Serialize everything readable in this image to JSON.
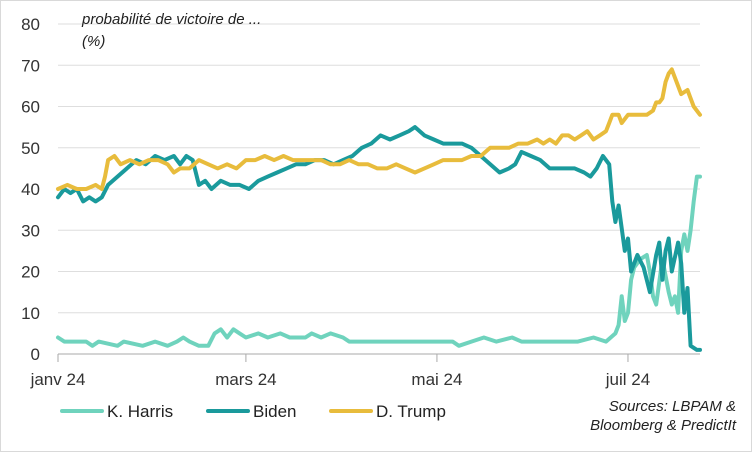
{
  "chart_data": {
    "type": "line",
    "ylabel_line1": "probabilité de victoire de ...",
    "ylabel_line2": "(%)",
    "ylim": [
      0,
      80
    ],
    "yticks": [
      0,
      10,
      20,
      30,
      40,
      50,
      60,
      70,
      80
    ],
    "x_range": [
      "2024-01-01",
      "2024-07-24"
    ],
    "xticks": [
      {
        "date": "2024-01-01",
        "label": "janv 24"
      },
      {
        "date": "2024-03-01",
        "label": "mars 24"
      },
      {
        "date": "2024-05-01",
        "label": "mai 24"
      },
      {
        "date": "2024-07-01",
        "label": "juil 24"
      }
    ],
    "grid": "horizontal",
    "legend": "bottom",
    "source": [
      "Sources: LBPAM &",
      "Bloomberg & PredictIt"
    ],
    "series": [
      {
        "name": "K. Harris",
        "color": "#6fd3bd",
        "points": [
          [
            "2024-01-01",
            4
          ],
          [
            "2024-01-03",
            3
          ],
          [
            "2024-01-10",
            3
          ],
          [
            "2024-01-12",
            2
          ],
          [
            "2024-01-14",
            3
          ],
          [
            "2024-01-20",
            2
          ],
          [
            "2024-01-22",
            3
          ],
          [
            "2024-01-28",
            2
          ],
          [
            "2024-02-01",
            3
          ],
          [
            "2024-02-05",
            2
          ],
          [
            "2024-02-08",
            3
          ],
          [
            "2024-02-10",
            4
          ],
          [
            "2024-02-12",
            3
          ],
          [
            "2024-02-15",
            2
          ],
          [
            "2024-02-18",
            2
          ],
          [
            "2024-02-20",
            5
          ],
          [
            "2024-02-22",
            6
          ],
          [
            "2024-02-24",
            4
          ],
          [
            "2024-02-26",
            6
          ],
          [
            "2024-02-28",
            5
          ],
          [
            "2024-03-01",
            4
          ],
          [
            "2024-03-05",
            5
          ],
          [
            "2024-03-08",
            4
          ],
          [
            "2024-03-12",
            5
          ],
          [
            "2024-03-15",
            4
          ],
          [
            "2024-03-20",
            4
          ],
          [
            "2024-03-22",
            5
          ],
          [
            "2024-03-25",
            4
          ],
          [
            "2024-03-28",
            5
          ],
          [
            "2024-04-01",
            4
          ],
          [
            "2024-04-03",
            3
          ],
          [
            "2024-04-10",
            3
          ],
          [
            "2024-04-20",
            3
          ],
          [
            "2024-05-01",
            3
          ],
          [
            "2024-05-06",
            3
          ],
          [
            "2024-05-08",
            2
          ],
          [
            "2024-05-12",
            3
          ],
          [
            "2024-05-16",
            4
          ],
          [
            "2024-05-20",
            3
          ],
          [
            "2024-05-25",
            4
          ],
          [
            "2024-05-28",
            3
          ],
          [
            "2024-06-05",
            3
          ],
          [
            "2024-06-15",
            3
          ],
          [
            "2024-06-20",
            4
          ],
          [
            "2024-06-24",
            3
          ],
          [
            "2024-06-27",
            5
          ],
          [
            "2024-06-28",
            7
          ],
          [
            "2024-06-29",
            14
          ],
          [
            "2024-06-30",
            8
          ],
          [
            "2024-07-01",
            10
          ],
          [
            "2024-07-02",
            18
          ],
          [
            "2024-07-03",
            21
          ],
          [
            "2024-07-05",
            23
          ],
          [
            "2024-07-07",
            24
          ],
          [
            "2024-07-08",
            20
          ],
          [
            "2024-07-09",
            14
          ],
          [
            "2024-07-10",
            12
          ],
          [
            "2024-07-12",
            23
          ],
          [
            "2024-07-14",
            15
          ],
          [
            "2024-07-15",
            12
          ],
          [
            "2024-07-16",
            14
          ],
          [
            "2024-07-17",
            10
          ],
          [
            "2024-07-18",
            25
          ],
          [
            "2024-07-19",
            29
          ],
          [
            "2024-07-20",
            25
          ],
          [
            "2024-07-21",
            30
          ],
          [
            "2024-07-22",
            37
          ],
          [
            "2024-07-23",
            43
          ],
          [
            "2024-07-24",
            43
          ]
        ]
      },
      {
        "name": "Biden",
        "color": "#1a9a9c",
        "points": [
          [
            "2024-01-01",
            38
          ],
          [
            "2024-01-03",
            40
          ],
          [
            "2024-01-05",
            39
          ],
          [
            "2024-01-07",
            40
          ],
          [
            "2024-01-09",
            37
          ],
          [
            "2024-01-11",
            38
          ],
          [
            "2024-01-13",
            37
          ],
          [
            "2024-01-15",
            38
          ],
          [
            "2024-01-17",
            41
          ],
          [
            "2024-01-20",
            43
          ],
          [
            "2024-01-23",
            45
          ],
          [
            "2024-01-26",
            47
          ],
          [
            "2024-01-29",
            46
          ],
          [
            "2024-02-01",
            48
          ],
          [
            "2024-02-04",
            47
          ],
          [
            "2024-02-07",
            48
          ],
          [
            "2024-02-09",
            46
          ],
          [
            "2024-02-11",
            48
          ],
          [
            "2024-02-13",
            47
          ],
          [
            "2024-02-14",
            44
          ],
          [
            "2024-02-15",
            41
          ],
          [
            "2024-02-17",
            42
          ],
          [
            "2024-02-19",
            40
          ],
          [
            "2024-02-22",
            42
          ],
          [
            "2024-02-25",
            41
          ],
          [
            "2024-02-28",
            41
          ],
          [
            "2024-03-02",
            40
          ],
          [
            "2024-03-05",
            42
          ],
          [
            "2024-03-08",
            43
          ],
          [
            "2024-03-11",
            44
          ],
          [
            "2024-03-14",
            45
          ],
          [
            "2024-03-17",
            46
          ],
          [
            "2024-03-20",
            46
          ],
          [
            "2024-03-23",
            47
          ],
          [
            "2024-03-26",
            47
          ],
          [
            "2024-03-29",
            46
          ],
          [
            "2024-04-01",
            47
          ],
          [
            "2024-04-04",
            48
          ],
          [
            "2024-04-07",
            50
          ],
          [
            "2024-04-10",
            51
          ],
          [
            "2024-04-13",
            53
          ],
          [
            "2024-04-16",
            52
          ],
          [
            "2024-04-19",
            53
          ],
          [
            "2024-04-22",
            54
          ],
          [
            "2024-04-24",
            55
          ],
          [
            "2024-04-27",
            53
          ],
          [
            "2024-04-30",
            52
          ],
          [
            "2024-05-03",
            51
          ],
          [
            "2024-05-06",
            51
          ],
          [
            "2024-05-09",
            51
          ],
          [
            "2024-05-12",
            50
          ],
          [
            "2024-05-15",
            48
          ],
          [
            "2024-05-18",
            46
          ],
          [
            "2024-05-21",
            44
          ],
          [
            "2024-05-24",
            45
          ],
          [
            "2024-05-26",
            46
          ],
          [
            "2024-05-28",
            49
          ],
          [
            "2024-05-31",
            48
          ],
          [
            "2024-06-03",
            47
          ],
          [
            "2024-06-06",
            45
          ],
          [
            "2024-06-10",
            45
          ],
          [
            "2024-06-14",
            45
          ],
          [
            "2024-06-17",
            44
          ],
          [
            "2024-06-19",
            43
          ],
          [
            "2024-06-21",
            45
          ],
          [
            "2024-06-23",
            48
          ],
          [
            "2024-06-25",
            46
          ],
          [
            "2024-06-26",
            37
          ],
          [
            "2024-06-27",
            32
          ],
          [
            "2024-06-28",
            36
          ],
          [
            "2024-06-30",
            25
          ],
          [
            "2024-07-01",
            28
          ],
          [
            "2024-07-02",
            20
          ],
          [
            "2024-07-04",
            24
          ],
          [
            "2024-07-06",
            21
          ],
          [
            "2024-07-08",
            15
          ],
          [
            "2024-07-10",
            24
          ],
          [
            "2024-07-11",
            27
          ],
          [
            "2024-07-12",
            18
          ],
          [
            "2024-07-13",
            25
          ],
          [
            "2024-07-14",
            28
          ],
          [
            "2024-07-15",
            20
          ],
          [
            "2024-07-17",
            27
          ],
          [
            "2024-07-18",
            22
          ],
          [
            "2024-07-19",
            10
          ],
          [
            "2024-07-20",
            16
          ],
          [
            "2024-07-21",
            2
          ],
          [
            "2024-07-23",
            1
          ],
          [
            "2024-07-24",
            1
          ]
        ]
      },
      {
        "name": "D. Trump",
        "color": "#e8bc3c",
        "points": [
          [
            "2024-01-01",
            40
          ],
          [
            "2024-01-04",
            41
          ],
          [
            "2024-01-07",
            40
          ],
          [
            "2024-01-10",
            40
          ],
          [
            "2024-01-13",
            41
          ],
          [
            "2024-01-15",
            40
          ],
          [
            "2024-01-16",
            43
          ],
          [
            "2024-01-17",
            47
          ],
          [
            "2024-01-19",
            48
          ],
          [
            "2024-01-21",
            46
          ],
          [
            "2024-01-24",
            47
          ],
          [
            "2024-01-27",
            46
          ],
          [
            "2024-01-30",
            47
          ],
          [
            "2024-02-02",
            47
          ],
          [
            "2024-02-05",
            46
          ],
          [
            "2024-02-07",
            44
          ],
          [
            "2024-02-09",
            45
          ],
          [
            "2024-02-12",
            45
          ],
          [
            "2024-02-15",
            47
          ],
          [
            "2024-02-18",
            46
          ],
          [
            "2024-02-21",
            45
          ],
          [
            "2024-02-24",
            46
          ],
          [
            "2024-02-27",
            45
          ],
          [
            "2024-03-01",
            47
          ],
          [
            "2024-03-04",
            47
          ],
          [
            "2024-03-07",
            48
          ],
          [
            "2024-03-10",
            47
          ],
          [
            "2024-03-13",
            48
          ],
          [
            "2024-03-16",
            47
          ],
          [
            "2024-03-19",
            47
          ],
          [
            "2024-03-22",
            47
          ],
          [
            "2024-03-25",
            47
          ],
          [
            "2024-03-28",
            46
          ],
          [
            "2024-03-31",
            46
          ],
          [
            "2024-04-03",
            47
          ],
          [
            "2024-04-06",
            46
          ],
          [
            "2024-04-09",
            46
          ],
          [
            "2024-04-12",
            45
          ],
          [
            "2024-04-15",
            45
          ],
          [
            "2024-04-18",
            46
          ],
          [
            "2024-04-21",
            45
          ],
          [
            "2024-04-24",
            44
          ],
          [
            "2024-04-27",
            45
          ],
          [
            "2024-04-30",
            46
          ],
          [
            "2024-05-03",
            47
          ],
          [
            "2024-05-06",
            47
          ],
          [
            "2024-05-09",
            47
          ],
          [
            "2024-05-12",
            48
          ],
          [
            "2024-05-15",
            48
          ],
          [
            "2024-05-18",
            50
          ],
          [
            "2024-05-21",
            50
          ],
          [
            "2024-05-24",
            50
          ],
          [
            "2024-05-27",
            51
          ],
          [
            "2024-05-30",
            51
          ],
          [
            "2024-06-02",
            52
          ],
          [
            "2024-06-04",
            51
          ],
          [
            "2024-06-06",
            52
          ],
          [
            "2024-06-08",
            51
          ],
          [
            "2024-06-10",
            53
          ],
          [
            "2024-06-12",
            53
          ],
          [
            "2024-06-14",
            52
          ],
          [
            "2024-06-16",
            53
          ],
          [
            "2024-06-18",
            54
          ],
          [
            "2024-06-20",
            52
          ],
          [
            "2024-06-22",
            53
          ],
          [
            "2024-06-24",
            54
          ],
          [
            "2024-06-25",
            56
          ],
          [
            "2024-06-26",
            58
          ],
          [
            "2024-06-28",
            58
          ],
          [
            "2024-06-29",
            56
          ],
          [
            "2024-07-01",
            58
          ],
          [
            "2024-07-04",
            58
          ],
          [
            "2024-07-07",
            58
          ],
          [
            "2024-07-09",
            59
          ],
          [
            "2024-07-10",
            61
          ],
          [
            "2024-07-11",
            61
          ],
          [
            "2024-07-12",
            62
          ],
          [
            "2024-07-13",
            66
          ],
          [
            "2024-07-14",
            68
          ],
          [
            "2024-07-15",
            69
          ],
          [
            "2024-07-16",
            67
          ],
          [
            "2024-07-18",
            63
          ],
          [
            "2024-07-20",
            64
          ],
          [
            "2024-07-21",
            62
          ],
          [
            "2024-07-22",
            60
          ],
          [
            "2024-07-24",
            58
          ]
        ]
      }
    ]
  }
}
